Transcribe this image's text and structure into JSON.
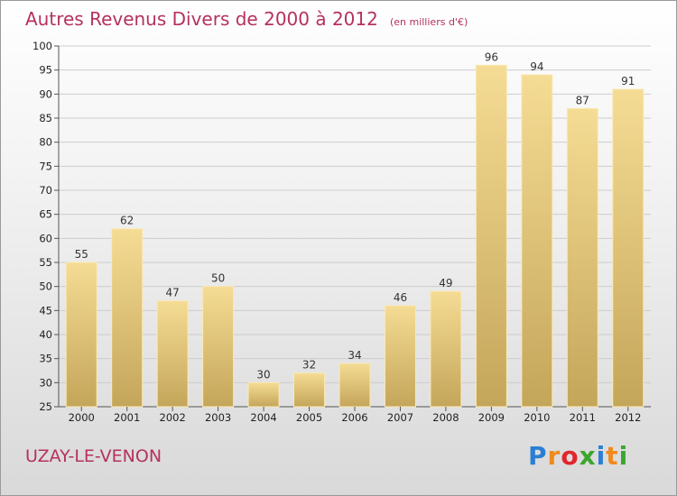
{
  "chart_data": {
    "type": "bar",
    "title": "Autres Revenus Divers de 2000 à 2012",
    "unit_label": "(en milliers d'€)",
    "xlabel": "",
    "ylabel": "",
    "categories": [
      "2000",
      "2001",
      "2002",
      "2003",
      "2004",
      "2005",
      "2006",
      "2007",
      "2008",
      "2009",
      "2010",
      "2011",
      "2012"
    ],
    "values": [
      55,
      62,
      47,
      50,
      30,
      32,
      34,
      46,
      49,
      96,
      94,
      87,
      91
    ],
    "ylim": [
      25,
      100
    ],
    "yticks": [
      25,
      30,
      35,
      40,
      45,
      50,
      55,
      60,
      65,
      70,
      75,
      80,
      85,
      90,
      95,
      100
    ],
    "grid": true,
    "legend": "none",
    "colors": {
      "bar": "#d8bd70",
      "title": "#b5315f",
      "grid": "#cccccc"
    }
  },
  "footer": {
    "commune": "UZAY-LE-VENON",
    "brand": {
      "letters": [
        "P",
        "r",
        "o",
        "x",
        "i",
        "t",
        "i"
      ],
      "colors": [
        "#2a7fd4",
        "#f08a1c",
        "#e0262c",
        "#3aa62f",
        "#2a7fd4",
        "#f08a1c",
        "#3aa62f"
      ]
    }
  }
}
